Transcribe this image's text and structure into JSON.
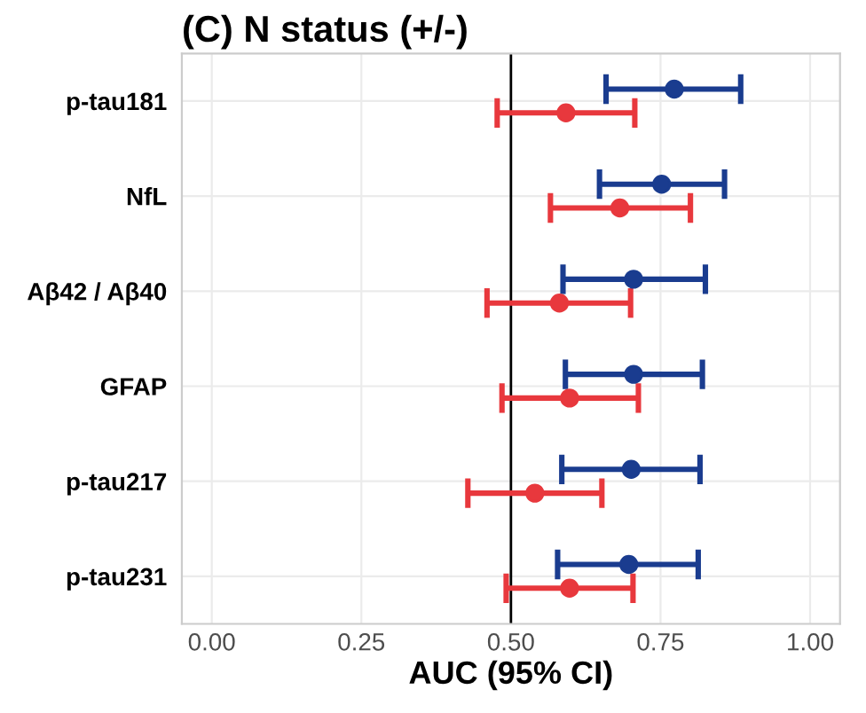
{
  "chart_data": {
    "type": "scatter",
    "orientation": "horizontal",
    "title": "(C) N status (+/-)",
    "xlabel": "AUC (95% CI)",
    "categories": [
      "p-tau181",
      "NfL",
      "Aβ42 / Aβ40",
      "GFAP",
      "p-tau217",
      "p-tau231"
    ],
    "series": [
      {
        "color": "#1a3c8f",
        "values": [
          0.773,
          0.752,
          0.705,
          0.705,
          0.701,
          0.697
        ],
        "errors": [
          [
            0.659,
            0.884
          ],
          [
            0.648,
            0.857
          ],
          [
            0.587,
            0.825
          ],
          [
            0.591,
            0.82
          ],
          [
            0.585,
            0.816
          ],
          [
            0.578,
            0.813
          ]
        ]
      },
      {
        "color": "#e8383d",
        "values": [
          0.592,
          0.682,
          0.581,
          0.598,
          0.54,
          0.598
        ],
        "errors": [
          [
            0.477,
            0.707
          ],
          [
            0.566,
            0.8
          ],
          [
            0.46,
            0.7
          ],
          [
            0.485,
            0.713
          ],
          [
            0.428,
            0.652
          ],
          [
            0.492,
            0.704
          ]
        ]
      }
    ],
    "xlim": [
      -0.05,
      1.05
    ],
    "xticks": [
      {
        "value": 0,
        "label": "0.00"
      },
      {
        "value": 0.25,
        "label": "0.25"
      },
      {
        "value": 0.5,
        "label": "0.50"
      },
      {
        "value": 0.75,
        "label": "0.75"
      },
      {
        "value": 1,
        "label": "1.00"
      }
    ],
    "ref_lines": [
      {
        "axis": "x",
        "value": 0.5,
        "color": "#000000"
      }
    ],
    "grid": true,
    "marker": "circle",
    "legend": false
  }
}
